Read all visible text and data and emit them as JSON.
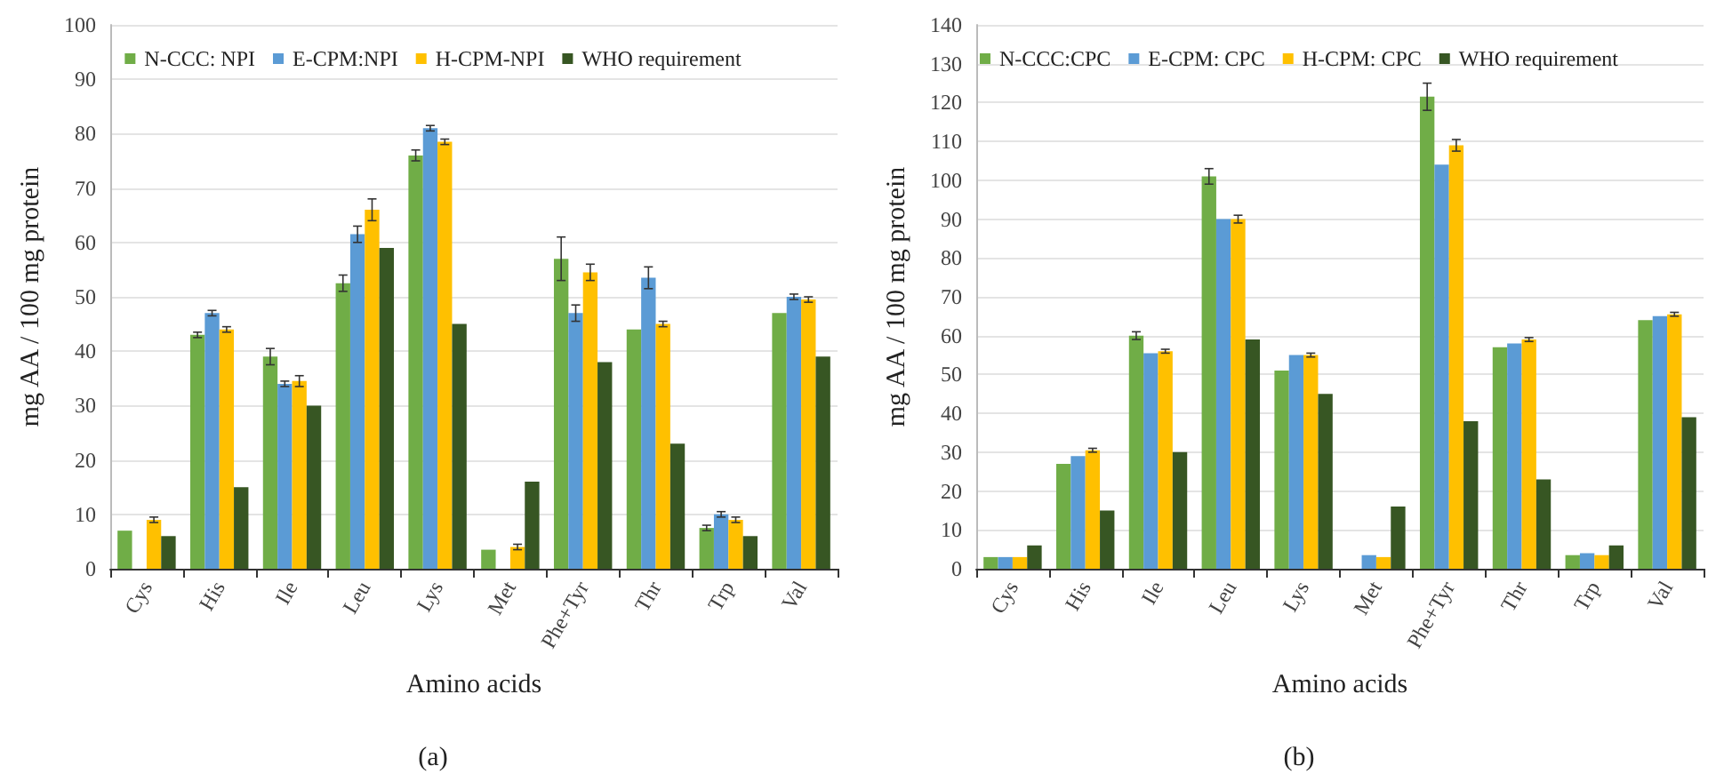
{
  "chart_data": [
    {
      "type": "bar",
      "xlabel": "Amino acids",
      "ylabel": "mg AA / 100 mg protein",
      "categories": [
        "Cys",
        "His",
        "Ile",
        "Leu",
        "Lys",
        "Met",
        "Phe+Tyr",
        "Thr",
        "Trp",
        "Val"
      ],
      "ylim": [
        0,
        100
      ],
      "yticks": [
        0,
        10,
        20,
        30,
        40,
        50,
        60,
        70,
        80,
        90,
        100
      ],
      "grid": "y",
      "legend": "top",
      "annotations": [
        "(a)"
      ],
      "series": [
        {
          "name": "N-CCC: NPI",
          "color": "#70ad47",
          "values": [
            7,
            43,
            39,
            52.5,
            76,
            3.5,
            57,
            44,
            7.5,
            47
          ],
          "errors": [
            null,
            0.5,
            1.5,
            1.5,
            1,
            null,
            4,
            null,
            0.5,
            null
          ]
        },
        {
          "name": "E-CPM:NPI",
          "color": "#5b9bd5",
          "values": [
            null,
            47,
            34,
            61.5,
            81,
            null,
            47,
            53.5,
            10,
            50
          ],
          "errors": [
            null,
            0.5,
            0.5,
            1.5,
            0.5,
            null,
            1.5,
            2,
            0.5,
            0.5
          ]
        },
        {
          "name": "H-CPM-NPI",
          "color": "#ffc000",
          "values": [
            9,
            44,
            34.5,
            66,
            78.5,
            4,
            54.5,
            45,
            9,
            49.5
          ],
          "errors": [
            0.5,
            0.5,
            1,
            2,
            0.5,
            0.5,
            1.5,
            0.5,
            0.5,
            0.5
          ]
        },
        {
          "name": "WHO requirement",
          "color": "#375623",
          "values": [
            6,
            15,
            30,
            59,
            45,
            16,
            38,
            23,
            6,
            39
          ]
        }
      ]
    },
    {
      "type": "bar",
      "xlabel": "Amino acids",
      "ylabel": "mg AA / 100 mg protein",
      "categories": [
        "Cys",
        "His",
        "Ile",
        "Leu",
        "Lys",
        "Met",
        "Phe+Tyr",
        "Thr",
        "Trp",
        "Val"
      ],
      "ylim": [
        0,
        140
      ],
      "yticks": [
        0,
        10,
        20,
        30,
        40,
        50,
        60,
        70,
        80,
        90,
        100,
        110,
        120,
        130,
        140
      ],
      "grid": "y",
      "legend": "top",
      "annotations": [
        "(b)"
      ],
      "series": [
        {
          "name": "N-CCC:CPC",
          "color": "#70ad47",
          "values": [
            3,
            27,
            60,
            101,
            51,
            null,
            121.5,
            57,
            3.5,
            64
          ],
          "errors": [
            null,
            null,
            1,
            2,
            null,
            null,
            3.5,
            null,
            null,
            null
          ]
        },
        {
          "name": "E-CPM: CPC",
          "color": "#5b9bd5",
          "values": [
            3,
            29,
            55.5,
            90,
            55,
            3.5,
            104,
            58,
            4,
            65
          ]
        },
        {
          "name": "H-CPM: CPC",
          "color": "#ffc000",
          "values": [
            3,
            30.5,
            56,
            90,
            55,
            3,
            109,
            59,
            3.5,
            65.5
          ],
          "errors": [
            null,
            0.5,
            0.5,
            1,
            0.5,
            null,
            1.5,
            0.5,
            null,
            0.5
          ]
        },
        {
          "name": "WHO requirement",
          "color": "#375623",
          "values": [
            6,
            15,
            30,
            59,
            45,
            16,
            38,
            23,
            6,
            39
          ]
        }
      ]
    }
  ]
}
